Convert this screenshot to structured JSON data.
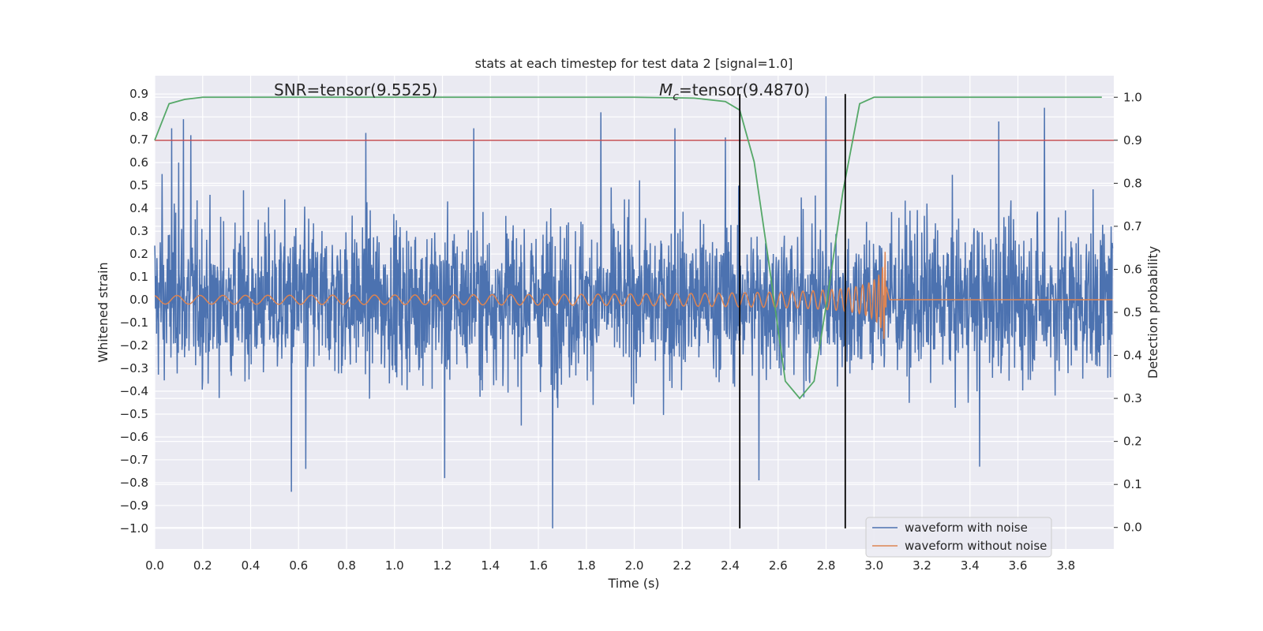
{
  "chart_data": {
    "type": "line",
    "title": "stats at each timestep for test data 2 [signal=1.0]",
    "xlabel": "Time (s)",
    "ylabel": "Whitened strain",
    "y2label": "Detection probability",
    "xlim": [
      0.0,
      4.0
    ],
    "ylim": [
      -1.09,
      0.98
    ],
    "y2lim": [
      -0.05,
      1.05
    ],
    "xticks": [
      "0.0",
      "0.2",
      "0.4",
      "0.6",
      "0.8",
      "1.0",
      "1.2",
      "1.4",
      "1.6",
      "1.8",
      "2.0",
      "2.2",
      "2.4",
      "2.6",
      "2.8",
      "3.0",
      "3.2",
      "3.4",
      "3.6",
      "3.8"
    ],
    "yticks": [
      "0.9",
      "0.8",
      "0.7",
      "0.6",
      "0.5",
      "0.4",
      "0.3",
      "0.2",
      "0.1",
      "0.0",
      "−0.1",
      "−0.2",
      "−0.3",
      "−0.4",
      "−0.5",
      "−0.6",
      "−0.7",
      "−0.8",
      "−0.9",
      "−1.0"
    ],
    "y2ticks": [
      "1.0",
      "0.9",
      "0.8",
      "0.7",
      "0.6",
      "0.5",
      "0.4",
      "0.3",
      "0.2",
      "0.1",
      "0.0"
    ],
    "grid": true,
    "legend_position": "lower-right",
    "annotations": {
      "snr": "SNR=tensor(9.5525)",
      "mc_symbol": "M",
      "mc_subscript": "c",
      "mc_value": "=tensor(9.4870)"
    },
    "series": [
      {
        "name": "waveform with noise",
        "color": "#4c72b0",
        "kind": "noise",
        "amplitude_range": [
          -1.0,
          0.89
        ],
        "peak_x": [
          0.03,
          0.07,
          0.1,
          0.12,
          0.15,
          0.57,
          0.63,
          0.88,
          1.21,
          1.33,
          1.66,
          1.86,
          2.17,
          2.38,
          2.52,
          2.8,
          3.44,
          3.52,
          3.71
        ],
        "peak_y": [
          0.55,
          0.75,
          0.6,
          0.79,
          0.72,
          -0.84,
          -0.74,
          0.73,
          -0.78,
          0.75,
          -1.0,
          0.82,
          0.75,
          0.71,
          -0.79,
          0.89,
          -0.73,
          0.78,
          0.84
        ]
      },
      {
        "name": "waveform without noise",
        "color": "#dd8452",
        "kind": "chirp",
        "merger_time": 3.05,
        "peak_amplitude": 0.31
      },
      {
        "name": "Detection probability",
        "color": "#55a868",
        "axis": "right",
        "x": [
          0.0,
          0.06,
          0.125,
          0.2,
          0.5,
          1.0,
          1.5,
          2.0,
          2.25,
          2.38,
          2.44,
          2.5,
          2.56,
          2.63,
          2.69,
          2.75,
          2.81,
          2.87,
          2.94,
          3.0,
          3.2,
          3.5,
          3.95
        ],
        "y": [
          0.9,
          0.985,
          0.995,
          1.0,
          1.0,
          1.0,
          1.0,
          1.0,
          0.998,
          0.99,
          0.97,
          0.85,
          0.62,
          0.34,
          0.3,
          0.34,
          0.55,
          0.78,
          0.985,
          1.0,
          1.0,
          1.0,
          1.0
        ]
      }
    ],
    "threshold_line": {
      "axis": "right",
      "y": 0.9,
      "color": "#c44e52"
    },
    "vertical_lines": [
      {
        "x": 2.44,
        "color": "#000000"
      },
      {
        "x": 2.88,
        "color": "#000000"
      }
    ]
  }
}
